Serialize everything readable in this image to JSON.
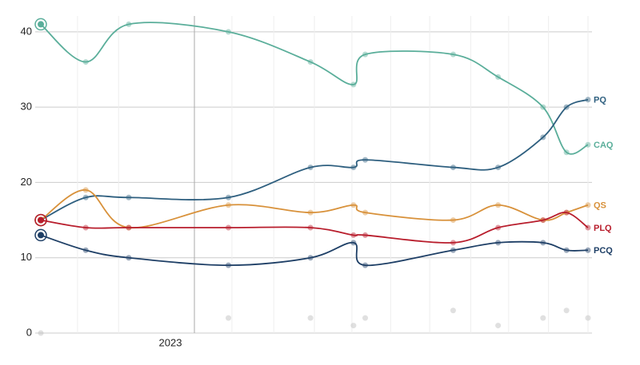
{
  "chart_data": {
    "type": "line",
    "x": [
      0,
      1.15,
      2.25,
      4.8,
      6.9,
      8.0,
      8.3,
      10.55,
      11.7,
      12.85,
      13.45,
      14
    ],
    "xlim": [
      0,
      14
    ],
    "xticks": [
      {
        "value": 3.93,
        "label": "2023"
      }
    ],
    "xminor": [
      0.94,
      1.99,
      4.89,
      5.96,
      7.0,
      7.96,
      8.95,
      9.95,
      11.0,
      11.97,
      12.99,
      14
    ],
    "ylim": [
      0,
      42
    ],
    "yticks": [
      0,
      10,
      20,
      30,
      40
    ],
    "grid": true,
    "series": [
      {
        "name": "CAQ",
        "color": "#5aae9a",
        "values": [
          41,
          36,
          41,
          40,
          36,
          33,
          37,
          37,
          34,
          30,
          24,
          25
        ]
      },
      {
        "name": "PQ",
        "color": "#2e5f7f",
        "values": [
          15,
          18,
          18,
          18,
          22,
          22,
          23,
          22,
          22,
          26,
          30,
          31
        ]
      },
      {
        "name": "QS",
        "color": "#d8913a",
        "values": [
          15,
          19,
          14,
          17,
          16,
          17,
          16,
          15,
          17,
          15,
          16,
          17
        ]
      },
      {
        "name": "PLQ",
        "color": "#b81d2c",
        "values": [
          15,
          14,
          14,
          14,
          14,
          13,
          13,
          12,
          14,
          15,
          16,
          14
        ]
      },
      {
        "name": "PCQ",
        "color": "#1e3f66",
        "values": [
          13,
          11,
          10,
          9,
          10,
          12,
          9,
          11,
          12,
          12,
          11,
          11
        ]
      },
      {
        "color": "#bbbbbb",
        "values": [
          0,
          null,
          null,
          2,
          2,
          1,
          2,
          3,
          1,
          2,
          3,
          2
        ]
      }
    ]
  }
}
